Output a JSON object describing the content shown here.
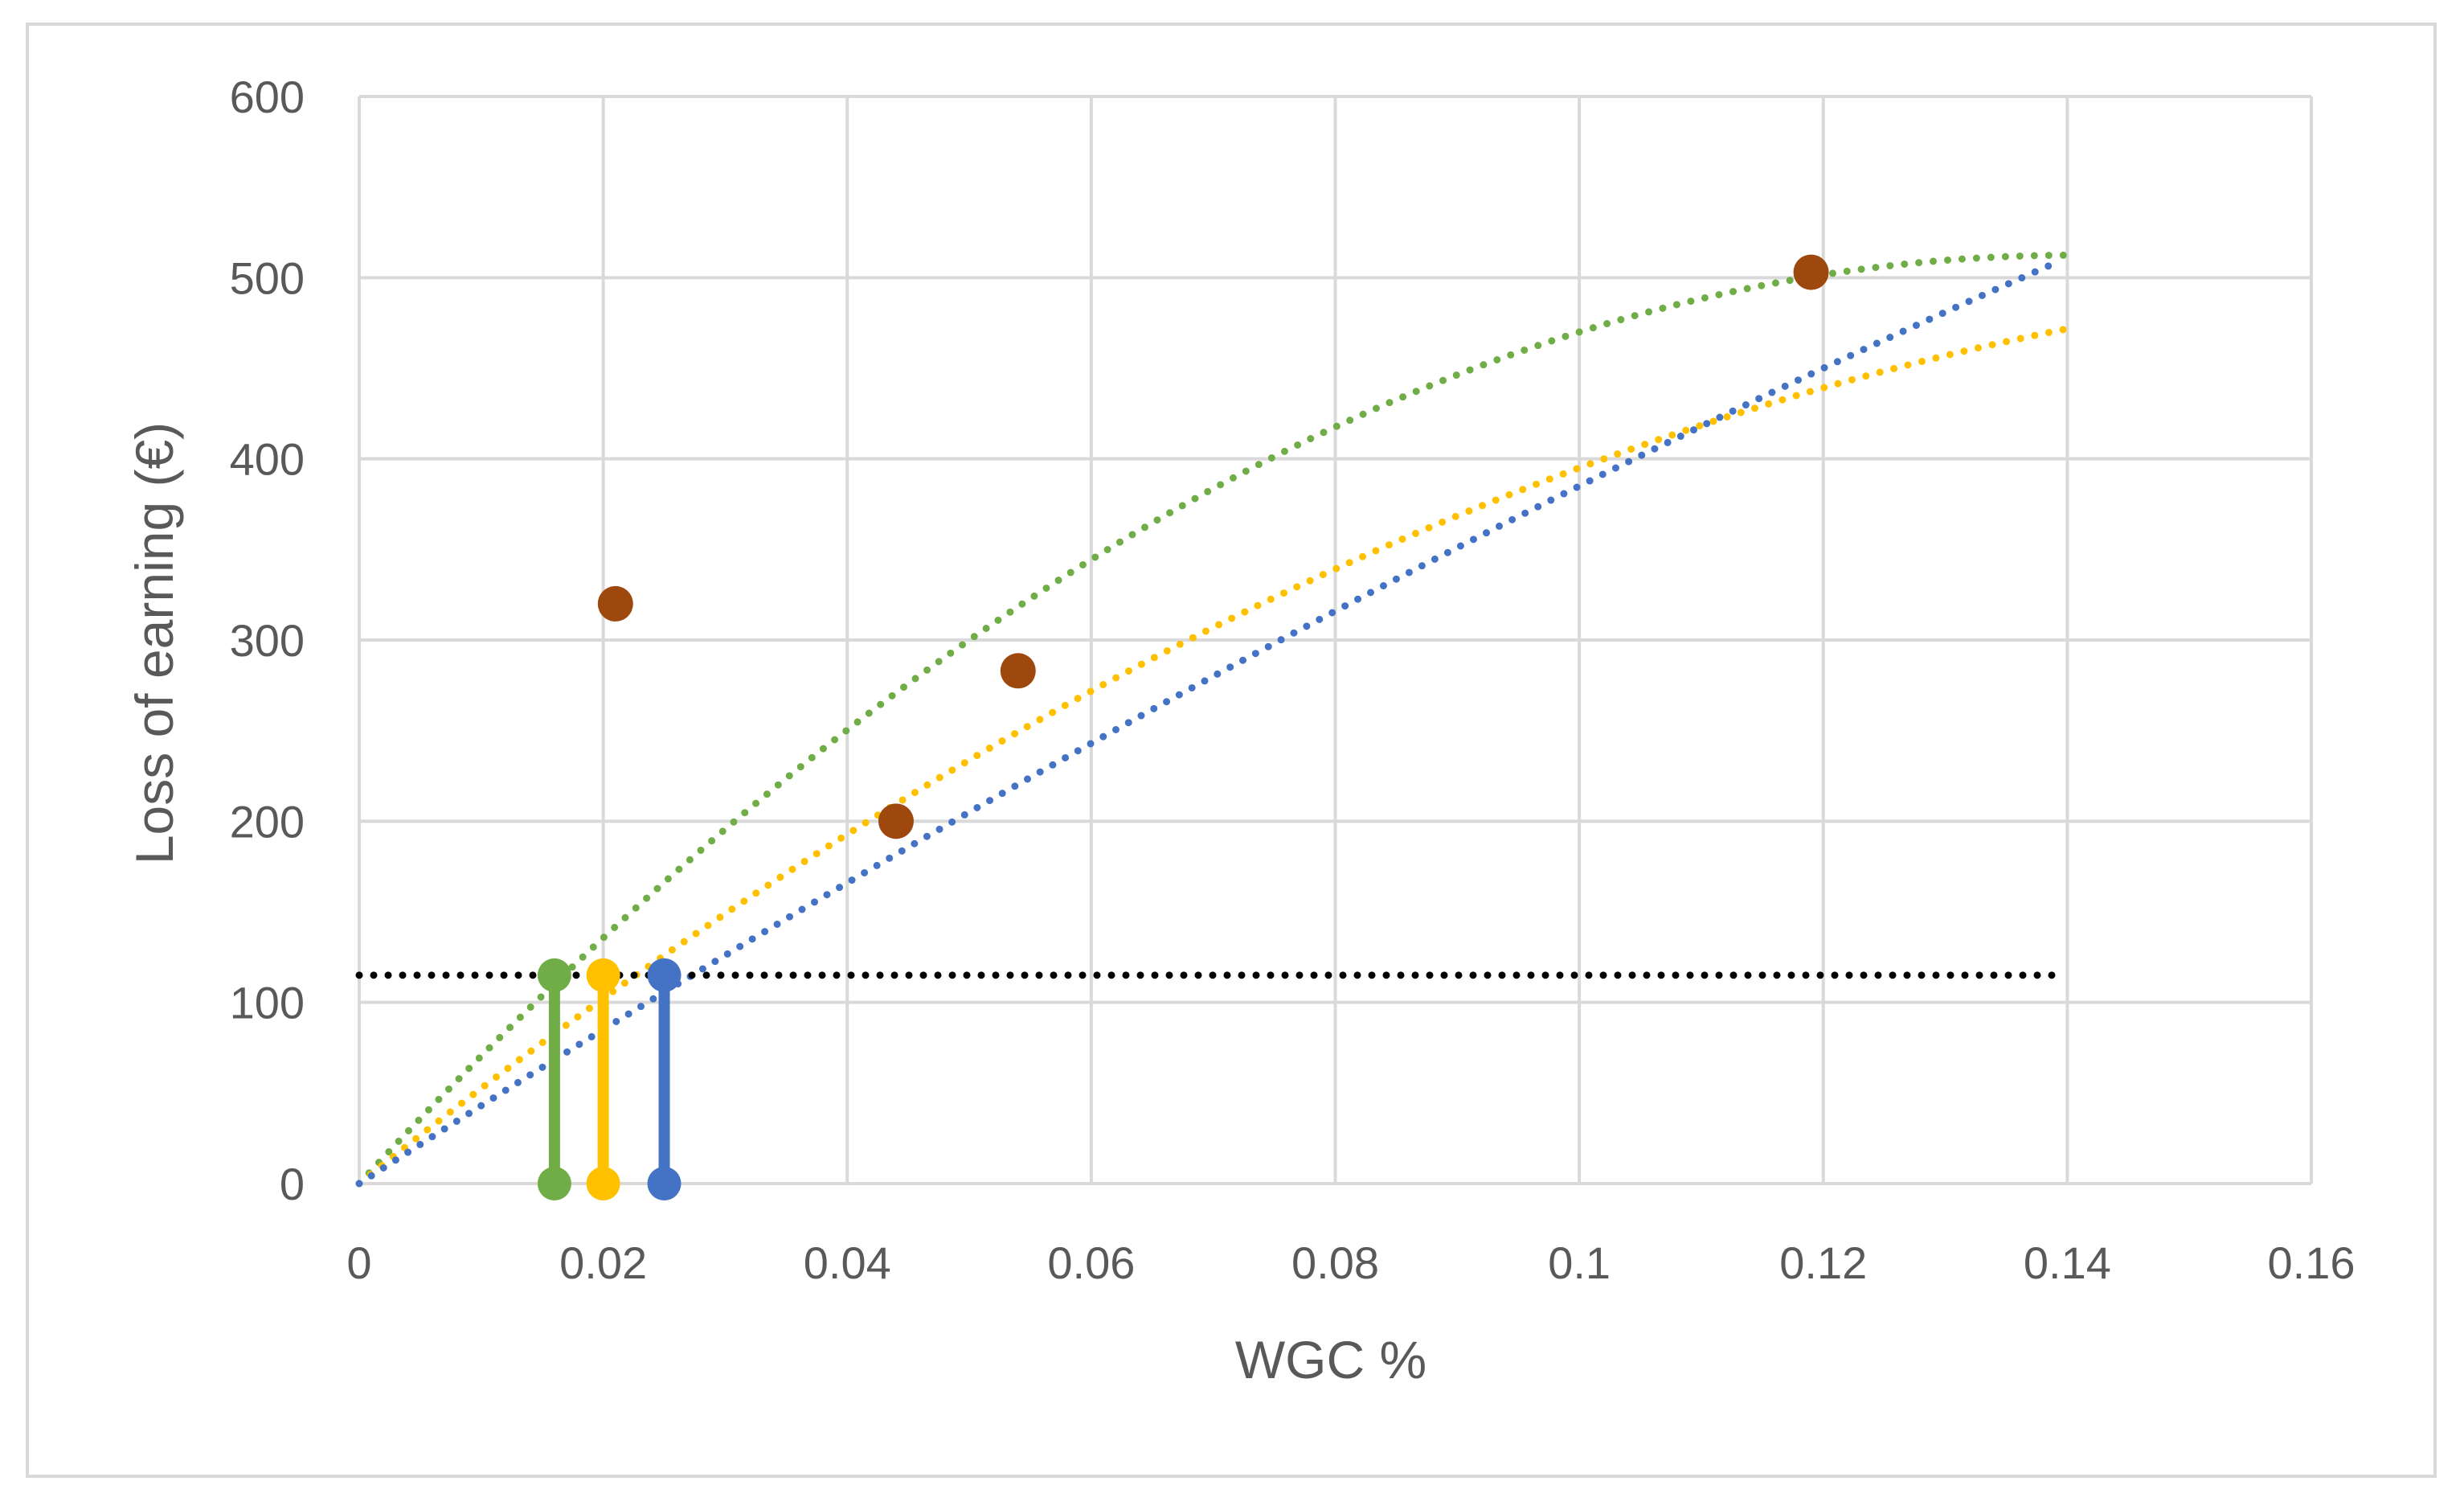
{
  "chart_data": {
    "type": "scatter",
    "title": "",
    "xlabel": "WGC %",
    "ylabel": "Loss of earning (€)",
    "xlim": [
      0,
      0.16
    ],
    "ylim": [
      0,
      600
    ],
    "grid": true,
    "x_ticks": [
      "0",
      "0.02",
      "0.04",
      "0.06",
      "0.08",
      "0.1",
      "0.12",
      "0.14",
      "0.16"
    ],
    "y_ticks": [
      "0",
      "100",
      "200",
      "300",
      "400",
      "500",
      "600"
    ],
    "x_tick_values": [
      0,
      0.02,
      0.04,
      0.06,
      0.08,
      0.1,
      0.12,
      0.14,
      0.16
    ],
    "y_tick_values": [
      0,
      100,
      200,
      300,
      400,
      500,
      600
    ],
    "observed_points": {
      "color": "#9e480e",
      "x": [
        0.021,
        0.044,
        0.054,
        0.119
      ],
      "y": [
        320,
        200,
        283,
        503
      ]
    },
    "trend_lines": [
      {
        "name": "green-trend",
        "color": "#70ad47",
        "coefficients": [
          0,
          7300,
          -26000
        ],
        "x_range": [
          0,
          0.14
        ]
      },
      {
        "name": "yellow-trend",
        "color": "#ffc000",
        "coefficients": [
          0,
          5400,
          -14500
        ],
        "x_range": [
          0,
          0.14
        ]
      },
      {
        "name": "blue-trend",
        "color": "#4472c4",
        "coefficients": [
          0,
          4350,
          -5000
        ],
        "x_range": [
          0,
          0.139
        ]
      }
    ],
    "threshold_line": {
      "color": "#000000",
      "y": 115,
      "x_range": [
        0,
        0.139
      ]
    },
    "drop_lines": [
      {
        "name": "green-drop",
        "color": "#70ad47",
        "x": 0.016,
        "y": 115
      },
      {
        "name": "yellow-drop",
        "color": "#ffc000",
        "x": 0.02,
        "y": 115
      },
      {
        "name": "blue-drop",
        "color": "#4472c4",
        "x": 0.025,
        "y": 115
      }
    ]
  }
}
